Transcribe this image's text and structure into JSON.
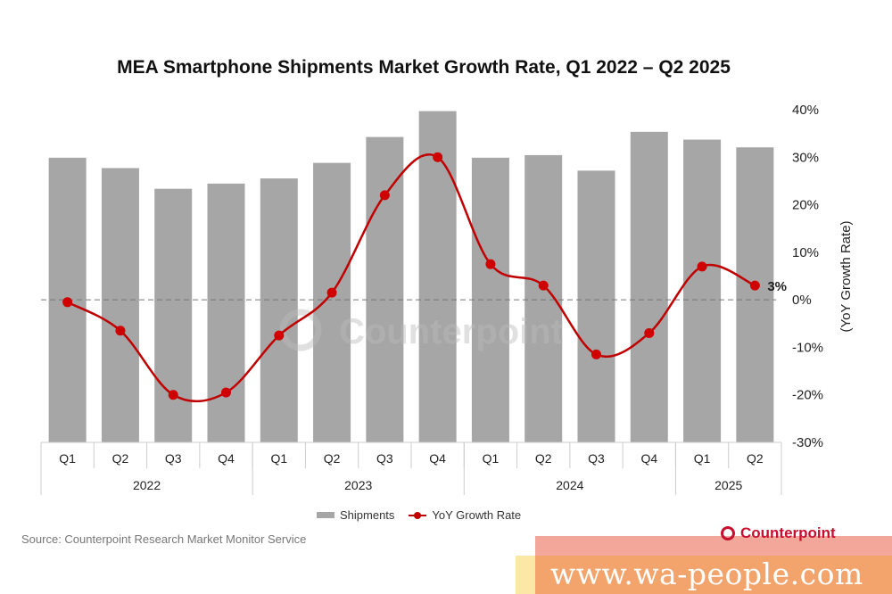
{
  "chart_data": {
    "type": "bar+line",
    "title": "MEA Smartphone Shipments Market Growth Rate, Q1 2022 – Q2 2025",
    "categories": [
      "Q1",
      "Q2",
      "Q3",
      "Q4",
      "Q1",
      "Q2",
      "Q3",
      "Q4",
      "Q1",
      "Q2",
      "Q3",
      "Q4",
      "Q1",
      "Q2"
    ],
    "year_groups": [
      {
        "label": "2022",
        "span": 4
      },
      {
        "label": "2023",
        "span": 4
      },
      {
        "label": "2024",
        "span": 4
      },
      {
        "label": "2025",
        "span": 2
      }
    ],
    "series": [
      {
        "name": "Shipments",
        "type": "bar",
        "color": "#a6a6a6",
        "unit": "relative index (no axis shown)",
        "values": [
          55,
          53,
          49,
          50,
          51,
          54,
          59,
          64,
          55,
          55.5,
          52.5,
          60,
          58.5,
          57
        ]
      },
      {
        "name": "YoY Growth Rate",
        "type": "line",
        "color": "#c00000",
        "unit": "%",
        "values": [
          -0.5,
          -6.5,
          -20,
          -19.5,
          -7.5,
          1.5,
          22,
          30,
          7.5,
          3,
          -11.5,
          -7,
          7,
          3
        ]
      }
    ],
    "y2_axis": {
      "label": "(YoY Growth Rate)",
      "min": -30,
      "max": 40,
      "ticks": [
        40,
        30,
        20,
        10,
        0,
        -10,
        -20,
        -30
      ],
      "tick_format": "{v}%"
    },
    "reference_line": {
      "value": 0,
      "style": "dashed"
    },
    "annotations": [
      {
        "category_index": 13,
        "text": "3%"
      }
    ],
    "legend": {
      "position": "bottom-center",
      "entries": [
        "Shipments",
        "YoY Growth Rate"
      ]
    }
  },
  "title": "MEA Smartphone Shipments Market Growth Rate, Q1 2022 – Q2 2025",
  "legend": {
    "shipments": "Shipments",
    "growth": "YoY Growth Rate"
  },
  "source": "Source: Counterpoint Research Market Monitor Service",
  "brand": "Counterpoint",
  "chart_watermark": "Counterpoint",
  "site_watermark": "www.wa-people.com"
}
